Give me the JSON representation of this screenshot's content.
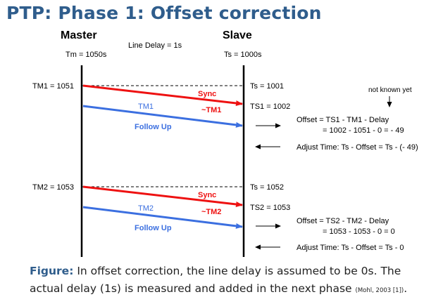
{
  "title": "PTP: Phase 1: Offset correction",
  "header": {
    "master": "Master",
    "slave": "Slave",
    "line_delay": "Line Delay = 1s",
    "tm": "Tm = 1050s",
    "ts": "Ts = 1000s"
  },
  "colors": {
    "sync": "#ee1111",
    "follow_up": "#3b6fe0",
    "title": "#2f5d8c"
  },
  "rounds": [
    {
      "tm_label": "TM1 = 1051",
      "ts_label": "Ts = 1001",
      "ts_recv_label": "TS1 = 1002",
      "sync_label": "Sync",
      "tm_msg_label": "~TM1",
      "tm_blue_label": "TM1",
      "follow_label": "Follow Up",
      "offset_line1": "Offset = TS1 - TM1 - Delay",
      "offset_line2": "= 1002 - 1051 - 0 = - 49",
      "adjust": "Adjust Time: Ts - Offset = Ts - (- 49)"
    },
    {
      "tm_label": "TM2 = 1053",
      "ts_label": "Ts = 1052",
      "ts_recv_label": "TS2 = 1053",
      "sync_label": "Sync",
      "tm_msg_label": "~TM2",
      "tm_blue_label": "TM2",
      "follow_label": "Follow Up",
      "offset_line1": "Offset = TS2 - TM2 - Delay",
      "offset_line2": "= 1053 - 1053 - 0 = 0",
      "adjust": "Adjust Time: Ts - Offset = Ts - 0"
    }
  ],
  "note": "not known yet",
  "caption": {
    "lead": "Figure:",
    "text": " In offset correction, the line delay is assumed to be 0s. The actual delay (1s) is measured and added in the next phase ",
    "cite": "(Mohl, 2003 [1])",
    "end": "."
  }
}
